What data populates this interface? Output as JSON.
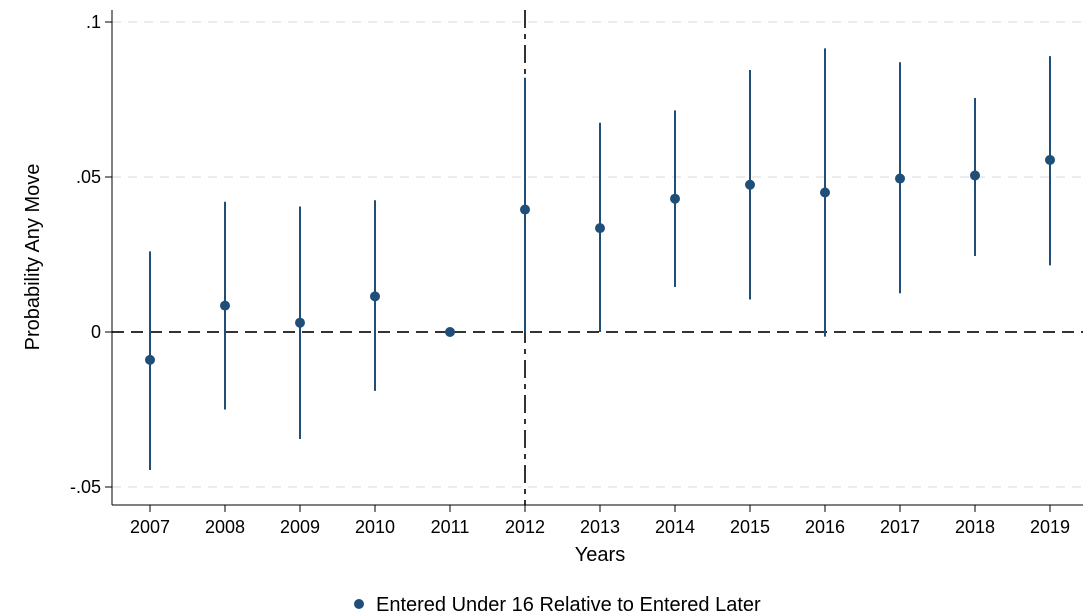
{
  "chart_data": {
    "type": "scatter",
    "subtype": "coefficient-plot-with-confidence-intervals",
    "title": "",
    "xlabel": "Years",
    "ylabel": "Probability Any Move",
    "x": [
      2007,
      2008,
      2009,
      2010,
      2011,
      2012,
      2013,
      2014,
      2015,
      2016,
      2017,
      2018,
      2019
    ],
    "x_tick_labels": [
      "2007",
      "2008",
      "2009",
      "2010",
      "2011",
      "2012",
      "2013",
      "2014",
      "2015",
      "2016",
      "2017",
      "2018",
      "2019"
    ],
    "y_ticks": [
      -0.05,
      0,
      0.05,
      0.1
    ],
    "y_tick_labels": [
      "-.05",
      "0",
      ".05",
      ".1"
    ],
    "ylim": [
      -0.054,
      0.103
    ],
    "grid": "horizontal dashed at y ticks",
    "reference_lines": {
      "horizontal_y": 0,
      "vertical_x": 2012,
      "style": "dashed"
    },
    "series": [
      {
        "name": "Entered Under 16 Relative to Entered Later",
        "color": "#1f4e79",
        "estimates": [
          -0.009,
          0.0085,
          0.003,
          0.0115,
          0.0,
          0.0395,
          0.0335,
          0.043,
          0.0475,
          0.045,
          0.0495,
          0.0505,
          0.0555
        ],
        "ci_lower": [
          -0.0445,
          -0.025,
          -0.0345,
          -0.019,
          0.0,
          0.0,
          0.0,
          0.0145,
          0.0105,
          -0.0015,
          0.0125,
          0.0245,
          0.0215
        ],
        "ci_upper": [
          0.026,
          0.042,
          0.0405,
          0.0425,
          0.0,
          0.082,
          0.0675,
          0.0715,
          0.0845,
          0.0915,
          0.087,
          0.0755,
          0.089
        ]
      }
    ],
    "legend": {
      "position": "bottom-center",
      "entries": [
        "Entered Under 16 Relative to Entered Later"
      ]
    }
  }
}
